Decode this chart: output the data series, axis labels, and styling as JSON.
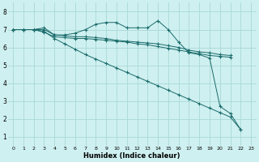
{
  "background_color": "#cff0f0",
  "grid_color": "#a8d8d8",
  "line_color": "#1a6b6b",
  "xlabel": "Humidex (Indice chaleur)",
  "xlim": [
    -0.5,
    23.5
  ],
  "ylim": [
    0.5,
    8.5
  ],
  "xticks": [
    0,
    1,
    2,
    3,
    4,
    5,
    6,
    7,
    8,
    9,
    10,
    11,
    12,
    13,
    14,
    15,
    16,
    17,
    18,
    19,
    20,
    21,
    22,
    23
  ],
  "yticks": [
    1,
    2,
    3,
    4,
    5,
    6,
    7,
    8
  ],
  "series": [
    {
      "x": [
        0,
        1,
        2,
        3,
        4,
        5,
        6,
        7,
        8,
        9,
        10,
        11,
        12,
        13,
        14,
        15,
        16,
        17,
        18,
        19,
        20,
        21,
        22
      ],
      "y": [
        7.0,
        7.0,
        7.0,
        7.1,
        6.7,
        6.7,
        6.8,
        7.0,
        7.3,
        7.4,
        7.4,
        7.1,
        7.1,
        7.1,
        7.5,
        7.0,
        6.3,
        5.7,
        5.6,
        5.4,
        2.7,
        2.3,
        1.4
      ]
    },
    {
      "x": [
        0,
        1,
        2,
        3,
        4,
        5,
        6,
        7,
        8,
        9,
        10,
        11,
        12,
        13,
        14,
        15,
        16,
        17,
        18,
        19,
        20,
        21
      ],
      "y": [
        7.0,
        7.0,
        7.0,
        7.0,
        6.7,
        6.65,
        6.6,
        6.6,
        6.55,
        6.5,
        6.4,
        6.35,
        6.3,
        6.25,
        6.2,
        6.1,
        6.0,
        5.85,
        5.75,
        5.7,
        5.6,
        5.55
      ]
    },
    {
      "x": [
        0,
        1,
        2,
        3,
        4,
        5,
        6,
        7,
        8,
        9,
        10,
        11,
        12,
        13,
        14,
        15,
        16,
        17,
        18,
        19,
        20,
        21
      ],
      "y": [
        7.0,
        7.0,
        7.0,
        6.85,
        6.6,
        6.55,
        6.5,
        6.5,
        6.45,
        6.4,
        6.35,
        6.3,
        6.2,
        6.15,
        6.05,
        5.95,
        5.85,
        5.75,
        5.65,
        5.55,
        5.5,
        5.45
      ]
    },
    {
      "x": [
        0,
        1,
        2,
        3,
        4,
        5,
        6,
        7,
        8,
        9,
        10,
        11,
        12,
        13,
        14,
        15,
        16,
        17,
        18,
        19,
        20,
        21,
        22
      ],
      "y": [
        7.0,
        7.0,
        7.0,
        6.9,
        6.5,
        6.2,
        5.9,
        5.6,
        5.35,
        5.1,
        4.85,
        4.6,
        4.35,
        4.1,
        3.85,
        3.6,
        3.35,
        3.1,
        2.85,
        2.6,
        2.35,
        2.1,
        1.4
      ]
    }
  ]
}
